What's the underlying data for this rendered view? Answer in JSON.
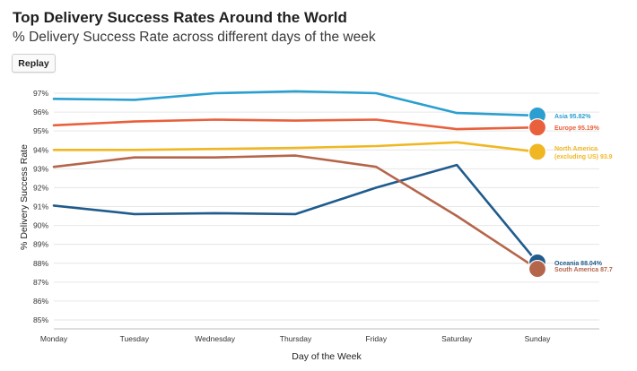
{
  "header": {
    "title": "Top Delivery Success Rates Around the World",
    "subtitle": "% Delivery Success Rate across different days of the week",
    "replay_label": "Replay"
  },
  "chart_data": {
    "type": "line",
    "title": "Top Delivery Success Rates Around the World",
    "subtitle": "% Delivery Success Rate across different days of the week",
    "xlabel": "Day of the Week",
    "ylabel": "% Delivery Success Rate",
    "categories": [
      "Monday",
      "Tuesday",
      "Wednesday",
      "Thursday",
      "Friday",
      "Saturday",
      "Sunday"
    ],
    "ylim": [
      85,
      97
    ],
    "yticks": [
      "85%",
      "86%",
      "87%",
      "88%",
      "89%",
      "90%",
      "91%",
      "92%",
      "93%",
      "94%",
      "95%",
      "96%",
      "97%"
    ],
    "grid": true,
    "series": [
      {
        "name": "Asia",
        "color": "#2a9fd0",
        "values": [
          96.7,
          96.65,
          97.0,
          97.1,
          97.0,
          95.95,
          95.82
        ],
        "end_label": [
          "Asia 95.82%"
        ]
      },
      {
        "name": "Europe",
        "color": "#e8603c",
        "values": [
          95.3,
          95.5,
          95.6,
          95.55,
          95.6,
          95.1,
          95.19
        ],
        "end_label": [
          "Europe 95.19%"
        ]
      },
      {
        "name": "North America (excluding US)",
        "color": "#f0b722",
        "values": [
          94.0,
          94.0,
          94.05,
          94.1,
          94.2,
          94.4,
          93.9
        ],
        "end_label": [
          "North America",
          "(excluding US) 93.9"
        ]
      },
      {
        "name": "Oceania",
        "color": "#1f5b8c",
        "values": [
          91.05,
          90.6,
          90.65,
          90.6,
          92.0,
          93.2,
          88.04
        ],
        "end_label": [
          "Oceania 88.04%"
        ]
      },
      {
        "name": "South America",
        "color": "#b5654a",
        "values": [
          93.1,
          93.6,
          93.6,
          93.7,
          93.1,
          90.5,
          87.7
        ],
        "end_label": [
          "South America 87.7"
        ]
      }
    ]
  }
}
